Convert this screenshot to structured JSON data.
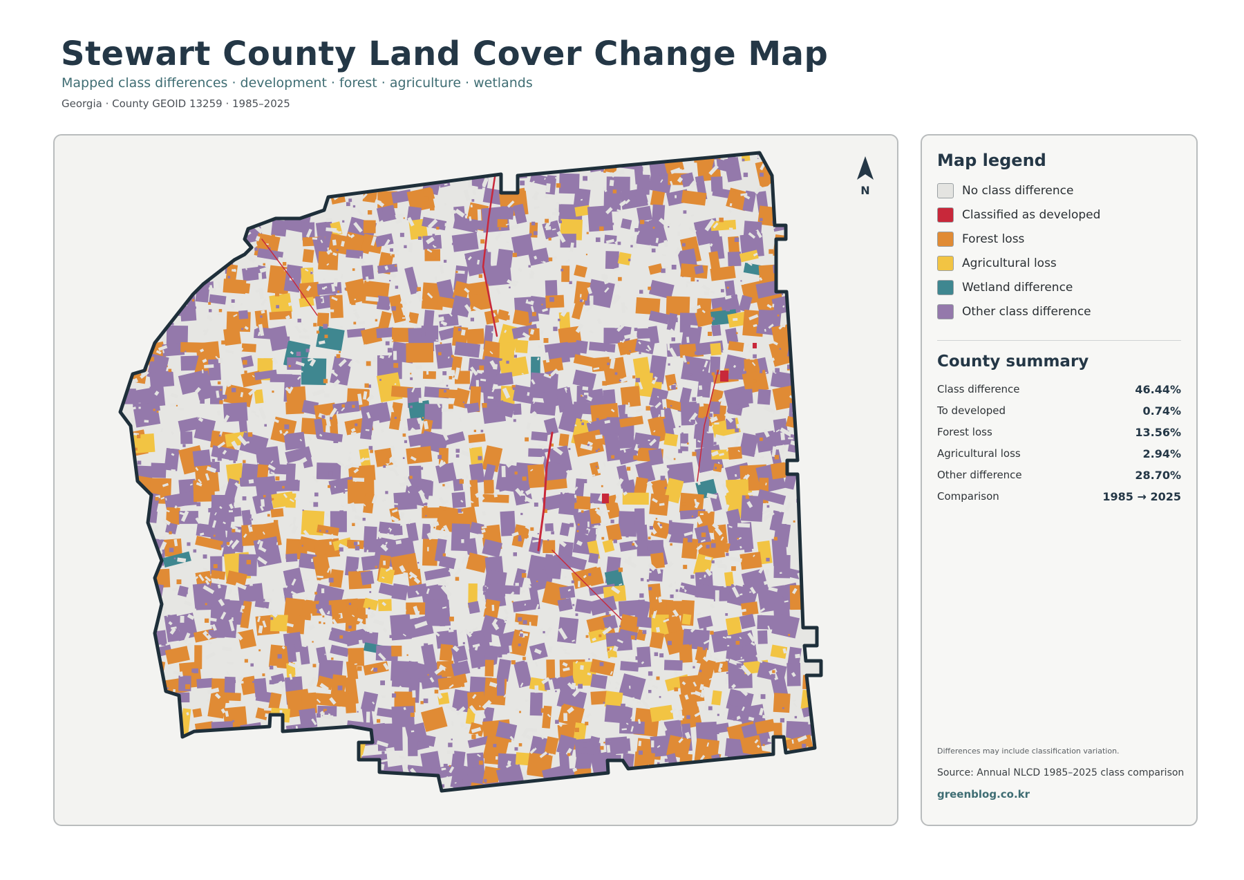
{
  "header": {
    "title": "Stewart County Land Cover Change Map",
    "subtitle": "Mapped class differences · development · forest · agriculture · wetlands",
    "meta": "Georgia · County GEOID 13259 · 1985–2025"
  },
  "map": {
    "north_label": "N",
    "north_icon": "north-arrow-icon",
    "outline_color": "#1e2f3a",
    "background_color": "#e6e6e3"
  },
  "legend": {
    "title": "Map legend",
    "items": [
      {
        "label": "No class difference",
        "color": "#e4e4e1"
      },
      {
        "label": "Classified as developed",
        "color": "#c8283a"
      },
      {
        "label": "Forest loss",
        "color": "#e08b35"
      },
      {
        "label": "Agricultural loss",
        "color": "#f2c443"
      },
      {
        "label": "Wetland difference",
        "color": "#3f8790"
      },
      {
        "label": "Other class difference",
        "color": "#9479ab"
      }
    ]
  },
  "summary": {
    "title": "County summary",
    "rows": [
      {
        "label": "Class difference",
        "value": "46.44%"
      },
      {
        "label": "To developed",
        "value": "0.74%"
      },
      {
        "label": "Forest loss",
        "value": "13.56%"
      },
      {
        "label": "Agricultural loss",
        "value": "2.94%"
      },
      {
        "label": "Other difference",
        "value": "28.70%"
      },
      {
        "label": "Comparison",
        "value": "1985 → 2025"
      }
    ]
  },
  "footer": {
    "note": "Differences may include classification variation.",
    "source": "Source: Annual NLCD 1985–2025 class comparison",
    "brand": "greenblog.co.kr"
  }
}
